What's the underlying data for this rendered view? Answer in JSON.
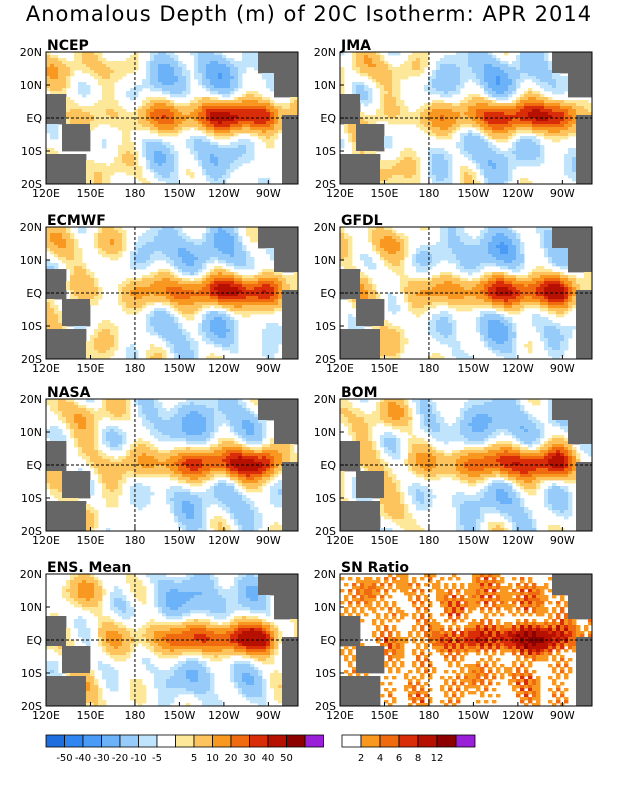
{
  "title": "Anomalous Depth (m) of 20C Isotherm: APR 2014",
  "lat_labels": [
    "20N",
    "10N",
    "EQ",
    "10S",
    "20S"
  ],
  "lon_labels": [
    "120E",
    "150E",
    "180",
    "150W",
    "120W",
    "90W"
  ],
  "panels": [
    {
      "name": "NCEP",
      "kind": "anomaly",
      "variant": 0
    },
    {
      "name": "JMA",
      "kind": "anomaly",
      "variant": 1
    },
    {
      "name": "ECMWF",
      "kind": "anomaly",
      "variant": 2
    },
    {
      "name": "GFDL",
      "kind": "anomaly",
      "variant": 3
    },
    {
      "name": "NASA",
      "kind": "anomaly",
      "variant": 4
    },
    {
      "name": "BOM",
      "kind": "anomaly",
      "variant": 5
    },
    {
      "name": "ENS. Mean",
      "kind": "anomaly",
      "variant": 6
    },
    {
      "name": "SN Ratio",
      "kind": "ratio",
      "variant": 7
    }
  ],
  "anomaly_colorbar": {
    "colors": [
      "#1e6ee0",
      "#2f86f0",
      "#4a9bf5",
      "#6cb2f8",
      "#96cbfa",
      "#c0e4fc",
      "#ffffff",
      "#fde89a",
      "#fdc35c",
      "#f99820",
      "#f06a10",
      "#d92c08",
      "#b51000",
      "#8c0000",
      "#9a1fd8"
    ],
    "labels": [
      "-50",
      "-40",
      "-30",
      "-20",
      "-10",
      "-5",
      "5",
      "10",
      "20",
      "30",
      "40",
      "50"
    ]
  },
  "ratio_colorbar": {
    "colors": [
      "#ffffff",
      "#f99820",
      "#f06a10",
      "#d92c08",
      "#b51000",
      "#8c0000",
      "#9a1fd8"
    ],
    "labels": [
      "2",
      "4",
      "6",
      "8",
      "12"
    ]
  }
}
